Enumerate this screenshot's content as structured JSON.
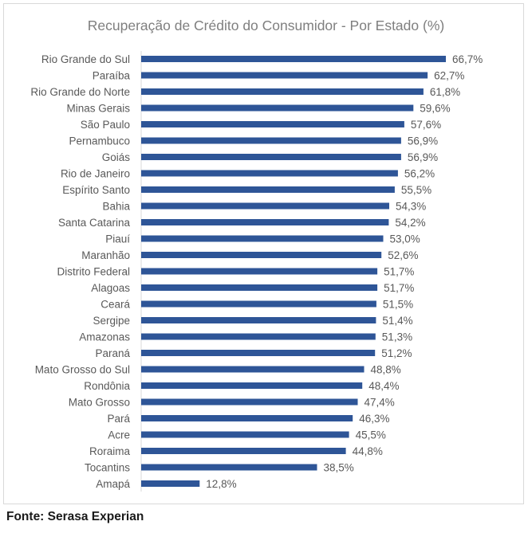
{
  "source_note": "Fonte: Serasa Experian",
  "chart_data": {
    "type": "bar",
    "orientation": "horizontal",
    "title": "Recuperação de Crédito do Consumidor - Por Estado (%)",
    "bar_color": "#2e5597",
    "categories": [
      "Rio Grande do Sul",
      "Paraíba",
      "Rio Grande do Norte",
      "Minas Gerais",
      "São Paulo",
      "Pernambuco",
      "Goiás",
      "Rio de Janeiro",
      "Espírito Santo",
      "Bahia",
      "Santa Catarina",
      "Piauí",
      "Maranhão",
      "Distrito Federal",
      "Alagoas",
      "Ceará",
      "Sergipe",
      "Amazonas",
      "Paraná",
      "Mato Grosso do Sul",
      "Rondônia",
      "Mato Grosso",
      "Pará",
      "Acre",
      "Roraima",
      "Tocantins",
      "Amapá"
    ],
    "values": [
      66.7,
      62.7,
      61.8,
      59.6,
      57.6,
      56.9,
      56.9,
      56.2,
      55.5,
      54.3,
      54.2,
      53.0,
      52.6,
      51.7,
      51.7,
      51.5,
      51.4,
      51.3,
      51.2,
      48.8,
      48.4,
      47.4,
      46.3,
      45.5,
      44.8,
      38.5,
      12.8
    ],
    "value_labels": [
      "66,7%",
      "62,7%",
      "61,8%",
      "59,6%",
      "57,6%",
      "56,9%",
      "56,9%",
      "56,2%",
      "55,5%",
      "54,3%",
      "54,2%",
      "53,0%",
      "52,6%",
      "51,7%",
      "51,7%",
      "51,5%",
      "51,4%",
      "51,3%",
      "51,2%",
      "48,8%",
      "48,4%",
      "47,4%",
      "46,3%",
      "45,5%",
      "44,8%",
      "38,5%",
      "12,8%"
    ],
    "xlim": [
      0,
      66.7
    ],
    "grid": false,
    "legend": "none"
  }
}
